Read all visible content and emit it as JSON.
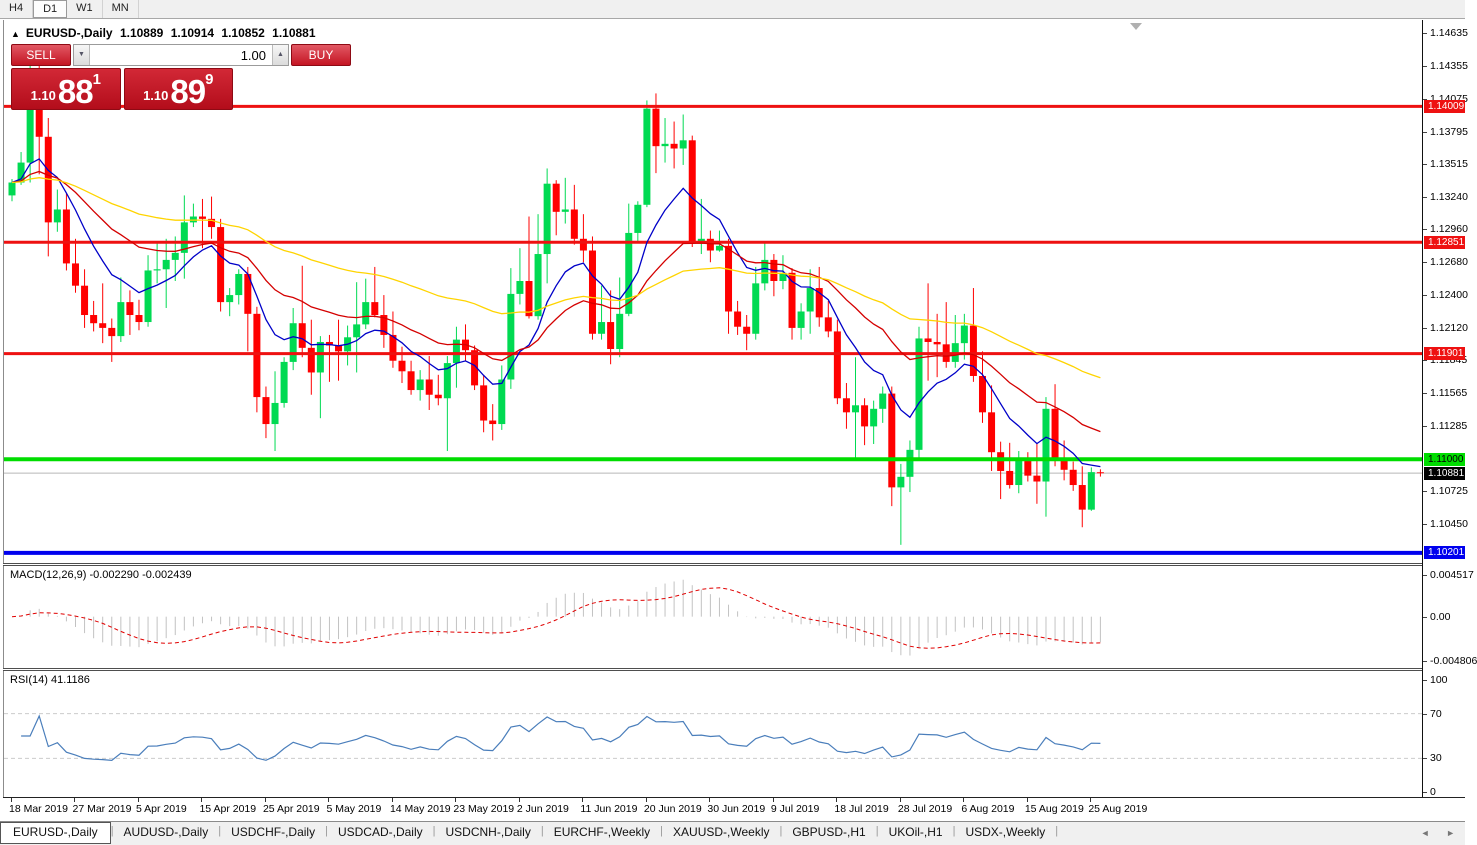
{
  "toolbar": {
    "periods": [
      {
        "label": "H4",
        "active": false
      },
      {
        "label": "D1",
        "active": true
      },
      {
        "label": "W1",
        "active": false
      },
      {
        "label": "MN",
        "active": false
      }
    ]
  },
  "header": {
    "collapse_marker": "▲",
    "title": "EURUSD-,Daily",
    "open": "1.10889",
    "high": "1.10914",
    "low": "1.10852",
    "close": "1.10881"
  },
  "trade_panel": {
    "sell_label": "SELL",
    "buy_label": "BUY",
    "volume": "1.00",
    "decrease_glyph": "▼",
    "increase_glyph": "▲",
    "sell_small": "1.10",
    "sell_big": "88",
    "sell_sup": "1",
    "buy_small": "1.10",
    "buy_big": "89",
    "buy_sup": "9"
  },
  "price_axis": {
    "ticks": [
      "1.14635",
      "1.14355",
      "1.14075",
      "1.13795",
      "1.13515",
      "1.13240",
      "1.12960",
      "1.12680",
      "1.12400",
      "1.12120",
      "1.11845",
      "1.11565",
      "1.11285",
      "1.10725",
      "1.10450"
    ],
    "levels": [
      {
        "label": "1.14009",
        "price": 1.14009,
        "bg": "#ee1111",
        "fg": "#ffffff"
      },
      {
        "label": "1.12851",
        "price": 1.12851,
        "bg": "#ee1111",
        "fg": "#ffffff"
      },
      {
        "label": "1.11901",
        "price": 1.11901,
        "bg": "#ee1111",
        "fg": "#ffffff"
      },
      {
        "label": "1.11000",
        "price": 1.11,
        "bg": "#00dd00",
        "fg": "#000000"
      },
      {
        "label": "1.10201",
        "price": 1.10201,
        "bg": "#0000ee",
        "fg": "#ffffff"
      }
    ],
    "current": {
      "label": "1.10881",
      "price": 1.10881,
      "bg": "#000000",
      "fg": "#ffffff"
    }
  },
  "macd_panel": {
    "title": "MACD(12,26,9) -0.002290 -0.002439",
    "axis_labels": [
      {
        "text": "0.004517",
        "value": 0.004517
      },
      {
        "text": "0.00",
        "value": 0
      },
      {
        "text": "-0.004806",
        "value": -0.004806
      }
    ]
  },
  "rsi_panel": {
    "title": "RSI(14) 41.1186",
    "axis_labels": [
      {
        "text": "100",
        "value": 100
      },
      {
        "text": "70",
        "value": 70
      },
      {
        "text": "30",
        "value": 30
      },
      {
        "text": "0",
        "value": 0
      }
    ]
  },
  "date_axis": {
    "labels": [
      "18 Mar 2019",
      "27 Mar 2019",
      "5 Apr 2019",
      "15 Apr 2019",
      "25 Apr 2019",
      "5 May 2019",
      "14 May 2019",
      "23 May 2019",
      "2 Jun 2019",
      "11 Jun 2019",
      "20 Jun 2019",
      "30 Jun 2019",
      "9 Jul 2019",
      "18 Jul 2019",
      "28 Jul 2019",
      "6 Aug 2019",
      "15 Aug 2019",
      "25 Aug 2019"
    ]
  },
  "tab_bar": {
    "scroll_left": "◄",
    "scroll_right": "►",
    "tabs": [
      {
        "label": "EURUSD-,Daily",
        "active": true
      },
      {
        "label": "AUDUSD-,Daily",
        "active": false
      },
      {
        "label": "USDCHF-,Daily",
        "active": false
      },
      {
        "label": "USDCAD-,Daily",
        "active": false
      },
      {
        "label": "USDCNH-,Daily",
        "active": false
      },
      {
        "label": "EURCHF-,Weekly",
        "active": false
      },
      {
        "label": "XAUUSD-,Weekly",
        "active": false
      },
      {
        "label": "GBPUSD-,H1",
        "active": false
      },
      {
        "label": "UKOil-,H1",
        "active": false
      },
      {
        "label": "USDX-,Weekly",
        "active": false
      }
    ]
  },
  "chart_data": {
    "type": "candlestick",
    "symbol": "EURUSD-",
    "timeframe": "Daily",
    "y_axis": {
      "min": 1.10115,
      "max": 1.14746
    },
    "bars_per_date_tick": 7,
    "colors": {
      "bull": "#00da52",
      "bear": "#ff0000",
      "ma_fast": "#0000c8",
      "ma_mid": "#d40000",
      "ma_slow": "#ffd400",
      "macd_hist": "#c2c2c2",
      "macd_signal": "#e00000",
      "rsi_line": "#4a7ebb",
      "current_price_line": "#b8b8b8",
      "rsi_levels": "#cccccc"
    },
    "moving_averages": [
      {
        "type": "ema",
        "period": 10,
        "color_key": "ma_fast"
      },
      {
        "type": "ema",
        "period": 25,
        "color_key": "ma_mid"
      },
      {
        "type": "ema",
        "period": 60,
        "color_key": "ma_slow"
      }
    ],
    "horizontal_lines": [
      {
        "price": 1.14009,
        "color": "#ee1111",
        "width": 3
      },
      {
        "price": 1.12851,
        "color": "#ee1111",
        "width": 3
      },
      {
        "price": 1.11901,
        "color": "#ee1111",
        "width": 3
      },
      {
        "price": 1.11,
        "color": "#00dd00",
        "width": 4
      },
      {
        "price": 1.10201,
        "color": "#0000ee",
        "width": 4
      }
    ],
    "current_price": 1.10881,
    "macd": {
      "fast": 12,
      "slow": 26,
      "signal_period": 9,
      "value": -0.00229,
      "signal_value": -0.002439,
      "axis_max": 0.004517,
      "axis_min": -0.004806
    },
    "rsi": {
      "period": 14,
      "value": 41.1186,
      "levels": [
        70,
        30
      ],
      "axis_max": 100,
      "axis_min": 0
    },
    "candles": [
      [
        1.1325,
        1.1339,
        1.132,
        1.1336
      ],
      [
        1.1336,
        1.1362,
        1.1334,
        1.1353
      ],
      [
        1.1353,
        1.1448,
        1.1336,
        1.141
      ],
      [
        1.141,
        1.1438,
        1.1343,
        1.1375
      ],
      [
        1.1375,
        1.1391,
        1.1273,
        1.1302
      ],
      [
        1.1302,
        1.133,
        1.1294,
        1.1313
      ],
      [
        1.1313,
        1.1327,
        1.1261,
        1.1267
      ],
      [
        1.1267,
        1.1288,
        1.1242,
        1.1248
      ],
      [
        1.1248,
        1.1262,
        1.1212,
        1.1223
      ],
      [
        1.1223,
        1.1235,
        1.1209,
        1.1216
      ],
      [
        1.1216,
        1.125,
        1.1199,
        1.1212
      ],
      [
        1.1212,
        1.122,
        1.1183,
        1.1205
      ],
      [
        1.1205,
        1.1255,
        1.12,
        1.1234
      ],
      [
        1.1234,
        1.1244,
        1.1206,
        1.1223
      ],
      [
        1.1223,
        1.1236,
        1.121,
        1.1217
      ],
      [
        1.1217,
        1.1274,
        1.1213,
        1.1261
      ],
      [
        1.1261,
        1.1285,
        1.125,
        1.1262
      ],
      [
        1.1262,
        1.1288,
        1.1229,
        1.127
      ],
      [
        1.127,
        1.129,
        1.1252,
        1.1276
      ],
      [
        1.1276,
        1.1325,
        1.1254,
        1.1302
      ],
      [
        1.1302,
        1.1318,
        1.1298,
        1.1307
      ],
      [
        1.1307,
        1.1322,
        1.128,
        1.1305
      ],
      [
        1.1305,
        1.1324,
        1.1288,
        1.1298
      ],
      [
        1.1298,
        1.1305,
        1.1226,
        1.1234
      ],
      [
        1.1234,
        1.1246,
        1.1222,
        1.124
      ],
      [
        1.124,
        1.1262,
        1.1232,
        1.1258
      ],
      [
        1.1258,
        1.1264,
        1.1192,
        1.1224
      ],
      [
        1.1224,
        1.123,
        1.114,
        1.1153
      ],
      [
        1.1153,
        1.1162,
        1.1118,
        1.113
      ],
      [
        1.113,
        1.1175,
        1.1107,
        1.1148
      ],
      [
        1.1148,
        1.1187,
        1.1144,
        1.1183
      ],
      [
        1.1183,
        1.1229,
        1.1176,
        1.1216
      ],
      [
        1.1216,
        1.1265,
        1.1187,
        1.1195
      ],
      [
        1.1195,
        1.1219,
        1.1155,
        1.1174
      ],
      [
        1.1174,
        1.1205,
        1.1135,
        1.12
      ],
      [
        1.12,
        1.1206,
        1.1166,
        1.1197
      ],
      [
        1.1197,
        1.1219,
        1.1167,
        1.1192
      ],
      [
        1.1192,
        1.1214,
        1.118,
        1.1204
      ],
      [
        1.1204,
        1.1251,
        1.1174,
        1.1215
      ],
      [
        1.1215,
        1.1254,
        1.1211,
        1.1234
      ],
      [
        1.1234,
        1.1264,
        1.1221,
        1.1223
      ],
      [
        1.1223,
        1.124,
        1.1195,
        1.1206
      ],
      [
        1.1206,
        1.1226,
        1.1178,
        1.1184
      ],
      [
        1.1184,
        1.1196,
        1.1165,
        1.1175
      ],
      [
        1.1175,
        1.1184,
        1.1155,
        1.1159
      ],
      [
        1.1159,
        1.1176,
        1.115,
        1.1168
      ],
      [
        1.1168,
        1.1188,
        1.1142,
        1.1155
      ],
      [
        1.1155,
        1.1172,
        1.1146,
        1.1152
      ],
      [
        1.1152,
        1.1188,
        1.1107,
        1.1182
      ],
      [
        1.1182,
        1.1213,
        1.1161,
        1.1202
      ],
      [
        1.1202,
        1.1215,
        1.1184,
        1.1193
      ],
      [
        1.1193,
        1.1197,
        1.1159,
        1.1163
      ],
      [
        1.1163,
        1.1172,
        1.1123,
        1.1133
      ],
      [
        1.1133,
        1.1147,
        1.1116,
        1.113
      ],
      [
        1.113,
        1.118,
        1.1125,
        1.1168
      ],
      [
        1.1168,
        1.1263,
        1.116,
        1.1241
      ],
      [
        1.1241,
        1.128,
        1.1232,
        1.1252
      ],
      [
        1.1252,
        1.1307,
        1.122,
        1.1222
      ],
      [
        1.1222,
        1.1309,
        1.1219,
        1.1275
      ],
      [
        1.1275,
        1.1348,
        1.125,
        1.1335
      ],
      [
        1.1335,
        1.1338,
        1.1291,
        1.1311
      ],
      [
        1.1311,
        1.134,
        1.1301,
        1.1313
      ],
      [
        1.1313,
        1.1334,
        1.1283,
        1.1288
      ],
      [
        1.1288,
        1.1309,
        1.1268,
        1.1278
      ],
      [
        1.1278,
        1.129,
        1.1202,
        1.1207
      ],
      [
        1.1207,
        1.1248,
        1.1202,
        1.1217
      ],
      [
        1.1217,
        1.1244,
        1.1181,
        1.1194
      ],
      [
        1.1194,
        1.1255,
        1.1187,
        1.1224
      ],
      [
        1.1224,
        1.1318,
        1.1222,
        1.1293
      ],
      [
        1.1293,
        1.132,
        1.1286,
        1.1317
      ],
      [
        1.1317,
        1.1406,
        1.1315,
        1.1399
      ],
      [
        1.1399,
        1.1412,
        1.1344,
        1.1367
      ],
      [
        1.1367,
        1.1391,
        1.1353,
        1.1369
      ],
      [
        1.1369,
        1.1388,
        1.1348,
        1.1365
      ],
      [
        1.1365,
        1.1394,
        1.1351,
        1.1372
      ],
      [
        1.1372,
        1.1376,
        1.1281,
        1.1285
      ],
      [
        1.1285,
        1.1322,
        1.1275,
        1.1288
      ],
      [
        1.1288,
        1.1295,
        1.1268,
        1.1278
      ],
      [
        1.1278,
        1.1295,
        1.1277,
        1.1282
      ],
      [
        1.1282,
        1.1288,
        1.1207,
        1.1226
      ],
      [
        1.1226,
        1.1235,
        1.1206,
        1.1213
      ],
      [
        1.1213,
        1.1223,
        1.1193,
        1.1207
      ],
      [
        1.1207,
        1.1264,
        1.1202,
        1.125
      ],
      [
        1.125,
        1.1286,
        1.1244,
        1.127
      ],
      [
        1.127,
        1.1275,
        1.1239,
        1.1252
      ],
      [
        1.1252,
        1.1274,
        1.1245,
        1.1259
      ],
      [
        1.1259,
        1.1263,
        1.1202,
        1.1212
      ],
      [
        1.1212,
        1.1233,
        1.1202,
        1.1226
      ],
      [
        1.1226,
        1.1262,
        1.1207,
        1.1246
      ],
      [
        1.1246,
        1.1264,
        1.1213,
        1.1221
      ],
      [
        1.1221,
        1.1235,
        1.1204,
        1.1209
      ],
      [
        1.1209,
        1.1219,
        1.1147,
        1.1152
      ],
      [
        1.1152,
        1.1165,
        1.1126,
        1.114
      ],
      [
        1.114,
        1.1187,
        1.1101,
        1.1146
      ],
      [
        1.1146,
        1.1152,
        1.1112,
        1.1128
      ],
      [
        1.1128,
        1.115,
        1.1113,
        1.1143
      ],
      [
        1.1143,
        1.1162,
        1.1131,
        1.1156
      ],
      [
        1.1156,
        1.1162,
        1.106,
        1.1076
      ],
      [
        1.1076,
        1.1096,
        1.1027,
        1.1085
      ],
      [
        1.1085,
        1.1116,
        1.1072,
        1.1108
      ],
      [
        1.1108,
        1.1213,
        1.1101,
        1.1203
      ],
      [
        1.1203,
        1.125,
        1.1167,
        1.12
      ],
      [
        1.12,
        1.1224,
        1.117,
        1.1198
      ],
      [
        1.1198,
        1.1234,
        1.1178,
        1.1183
      ],
      [
        1.1183,
        1.1223,
        1.1178,
        1.1199
      ],
      [
        1.1199,
        1.1224,
        1.1185,
        1.1214
      ],
      [
        1.1214,
        1.1246,
        1.1166,
        1.1171
      ],
      [
        1.1171,
        1.1192,
        1.1131,
        1.114
      ],
      [
        1.114,
        1.1163,
        1.109,
        1.1106
      ],
      [
        1.1106,
        1.1115,
        1.1066,
        1.109
      ],
      [
        1.109,
        1.1114,
        1.1075,
        1.1078
      ],
      [
        1.1078,
        1.1107,
        1.1071,
        1.1099
      ],
      [
        1.1099,
        1.1106,
        1.1081,
        1.1086
      ],
      [
        1.1086,
        1.1113,
        1.1062,
        1.1081
      ],
      [
        1.1081,
        1.1153,
        1.1051,
        1.1143
      ],
      [
        1.1143,
        1.1164,
        1.1094,
        1.1101
      ],
      [
        1.1101,
        1.1116,
        1.1082,
        1.1091
      ],
      [
        1.1091,
        1.1098,
        1.1073,
        1.1078
      ],
      [
        1.1078,
        1.1094,
        1.1042,
        1.1057
      ],
      [
        1.1057,
        1.1093,
        1.1056,
        1.1089
      ],
      [
        1.10889,
        1.10914,
        1.10852,
        1.10881
      ]
    ]
  }
}
